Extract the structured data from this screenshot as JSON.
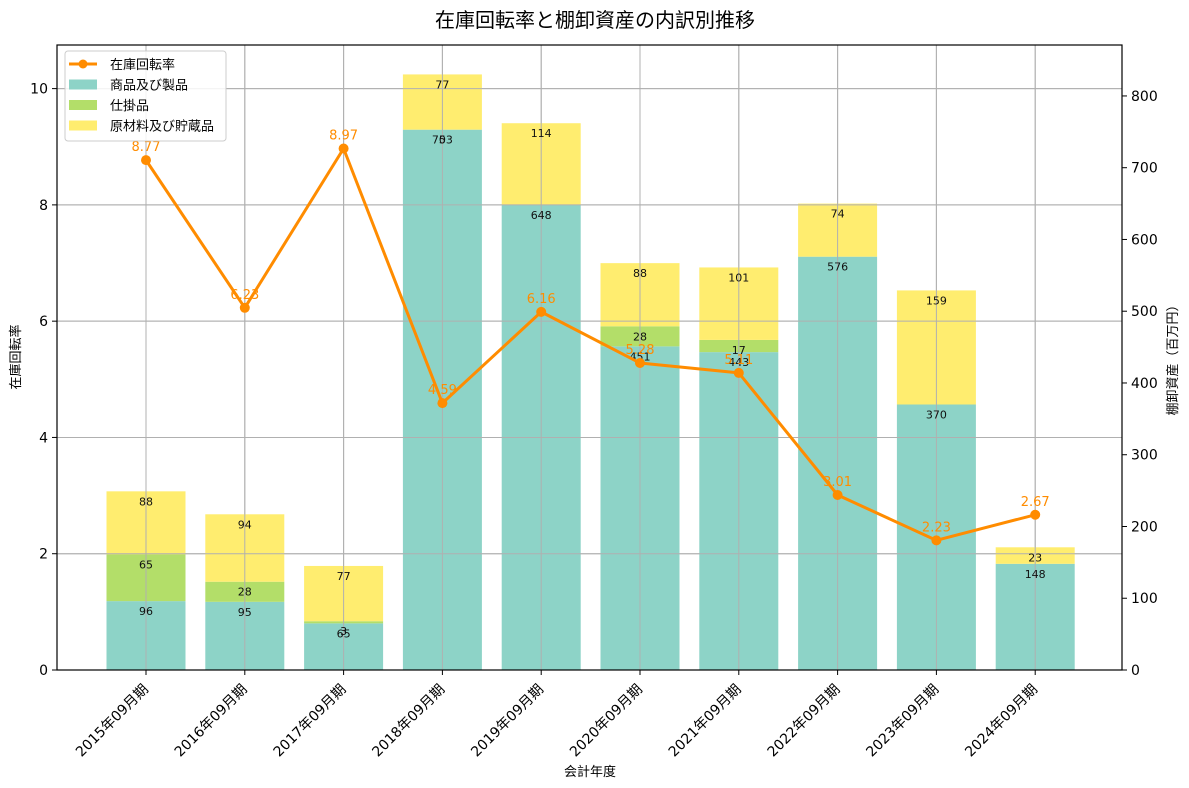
{
  "chart_data": {
    "type": "bar",
    "subtype": "stacked bar + line (dual axis)",
    "title": "在庫回転率と棚卸資産の内訳別推移",
    "xlabel": "会計年度",
    "ylabel": "在庫回転率",
    "y2label": "棚卸資産（百万円）",
    "categories": [
      "2015年09月期",
      "2016年09月期",
      "2017年09月期",
      "2018年09月期",
      "2019年09月期",
      "2020年09月期",
      "2021年09月期",
      "2022年09月期",
      "2023年09月期",
      "2024年09月期"
    ],
    "series": [
      {
        "name": "商品及び製品",
        "type": "bar",
        "axis": "right",
        "color": "#8dd3c7",
        "values": [
          96,
          95,
          65,
          753,
          648,
          451,
          443,
          576,
          370,
          148
        ]
      },
      {
        "name": "仕掛品",
        "type": "bar",
        "axis": "right",
        "color": "#b3de69",
        "values": [
          65,
          28,
          3,
          0,
          0,
          28,
          17,
          0,
          0,
          0
        ]
      },
      {
        "name": "原材料及び貯蔵品",
        "type": "bar",
        "axis": "right",
        "color": "#ffed6f",
        "values": [
          88,
          94,
          77,
          77,
          114,
          88,
          101,
          74,
          159,
          23
        ]
      },
      {
        "name": "在庫回転率",
        "type": "line",
        "axis": "left",
        "color": "#ff8c00",
        "values": [
          8.77,
          6.23,
          8.97,
          4.59,
          6.16,
          5.28,
          5.11,
          3.01,
          2.23,
          2.67
        ]
      }
    ],
    "ylim": [
      0,
      10.75
    ],
    "y2lim": [
      0,
      871
    ],
    "yticks": [
      0,
      2,
      4,
      6,
      8,
      10
    ],
    "y2ticks": [
      0,
      100,
      200,
      300,
      400,
      500,
      600,
      700,
      800
    ],
    "grid": true,
    "legend_position": "upper left"
  },
  "legend": {
    "items": [
      {
        "label": "在庫回転率",
        "kind": "line",
        "color": "#ff8c00"
      },
      {
        "label": "商品及び製品",
        "kind": "patch",
        "color": "#8dd3c7"
      },
      {
        "label": "仕掛品",
        "kind": "patch",
        "color": "#b3de69"
      },
      {
        "label": "原材料及び貯蔵品",
        "kind": "patch",
        "color": "#ffed6f"
      }
    ]
  }
}
